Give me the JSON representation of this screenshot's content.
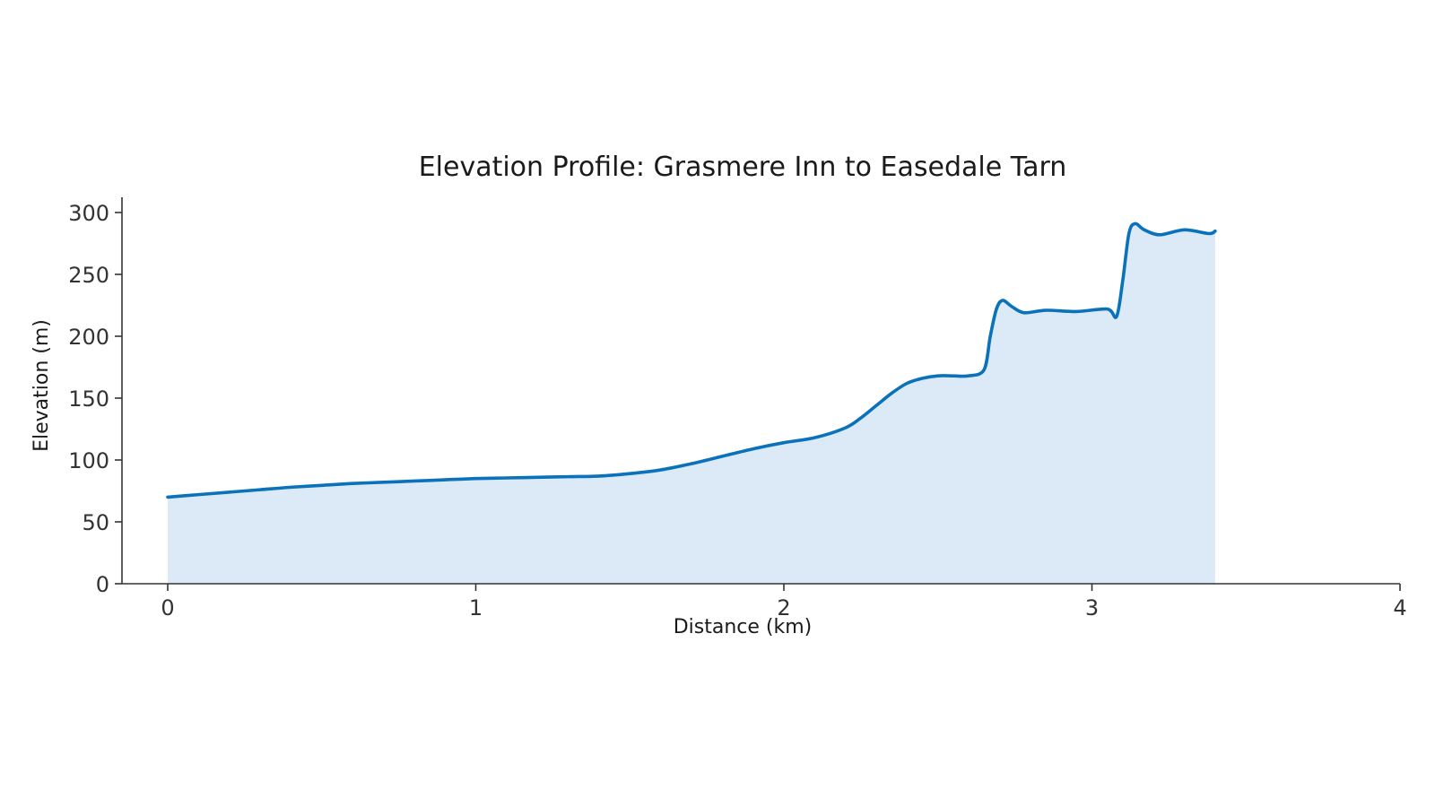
{
  "chart_data": {
    "type": "area",
    "title": "Elevation Profile: Grasmere Inn to Easedale Tarn",
    "xlabel": "Distance (km)",
    "ylabel": "Elevation (m)",
    "xlim": [
      0,
      4
    ],
    "ylim": [
      0,
      300
    ],
    "x_ticks": [
      0,
      1,
      2,
      3,
      4
    ],
    "y_ticks": [
      0,
      50,
      100,
      150,
      200,
      250,
      300
    ],
    "grid": false,
    "legend": "none",
    "series": [
      {
        "x": [
          0,
          0.1,
          0.2,
          0.3,
          0.4,
          0.5,
          0.6,
          0.7,
          0.8,
          0.9,
          1.0,
          1.1,
          1.2,
          1.3,
          1.4,
          1.5,
          1.6,
          1.7,
          1.8,
          1.9,
          2.0,
          2.1,
          2.2,
          2.25,
          2.3,
          2.35,
          2.4,
          2.45,
          2.5,
          2.55,
          2.6,
          2.65,
          2.67,
          2.69,
          2.71,
          2.74,
          2.78,
          2.85,
          2.95,
          3.05,
          3.08,
          3.1,
          3.12,
          3.14,
          3.17,
          3.22,
          3.3,
          3.38,
          3.4
        ],
        "y": [
          70,
          72,
          74,
          76,
          78,
          79.5,
          81,
          82,
          83,
          84,
          85,
          85.5,
          86,
          86.5,
          87,
          89,
          92,
          97,
          103,
          109,
          114,
          118,
          126,
          134,
          144,
          154,
          162,
          166,
          168,
          168,
          168,
          173,
          200,
          222,
          229,
          224,
          219,
          221,
          220,
          222,
          216,
          245,
          283,
          291,
          286,
          282,
          286,
          283,
          285
        ]
      }
    ],
    "colors": {
      "line": "#0a72ba",
      "fill": "#dbeaf6"
    }
  }
}
